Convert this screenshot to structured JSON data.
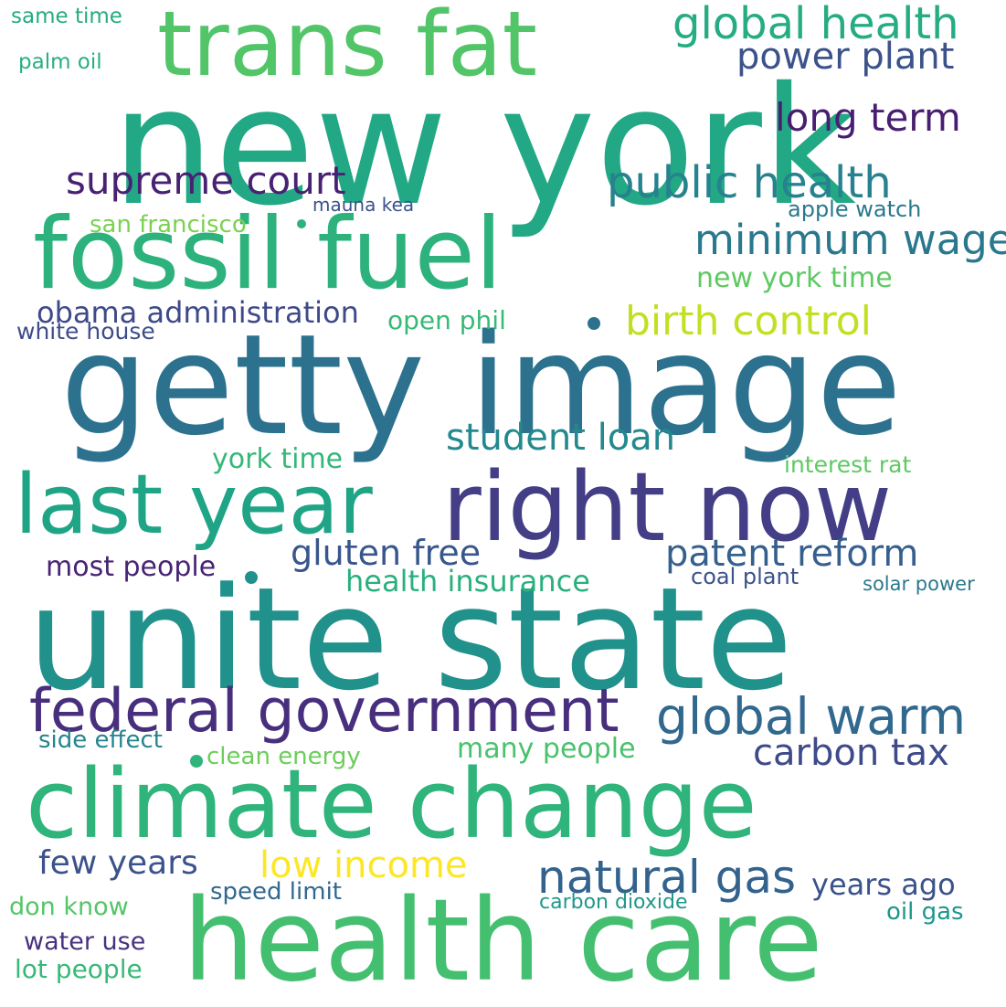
{
  "words": [
    {
      "text": "new york",
      "color": "#22a884"
    },
    {
      "text": "getty image",
      "color": "#2c728e"
    },
    {
      "text": "unite state",
      "color": "#21918c"
    },
    {
      "text": "climate change",
      "color": "#2fb47c"
    },
    {
      "text": "health care",
      "color": "#44bf70"
    },
    {
      "text": "fossil fuel",
      "color": "#2db27d"
    },
    {
      "text": "trans fat",
      "color": "#52c569"
    },
    {
      "text": "right now",
      "color": "#433e85"
    },
    {
      "text": "last year",
      "color": "#20a486"
    },
    {
      "text": "federal government",
      "color": "#472f7d"
    },
    {
      "text": "global health",
      "color": "#25ac82"
    },
    {
      "text": "power plant",
      "color": "#3b528b"
    },
    {
      "text": "long term",
      "color": "#481f70"
    },
    {
      "text": "supreme court",
      "color": "#482173"
    },
    {
      "text": "public health",
      "color": "#26828e"
    },
    {
      "text": "minimum wage",
      "color": "#2a788e"
    },
    {
      "text": "birth control",
      "color": "#c2df23"
    },
    {
      "text": "global warm",
      "color": "#31688e"
    },
    {
      "text": "natural gas",
      "color": "#33638d"
    },
    {
      "text": "student loan",
      "color": "#23898e"
    },
    {
      "text": "patent reform",
      "color": "#355f8d"
    },
    {
      "text": "carbon tax",
      "color": "#3e4a89"
    },
    {
      "text": "low income",
      "color": "#fde725"
    },
    {
      "text": "gluten free",
      "color": "#39568c"
    },
    {
      "text": "health insurance",
      "color": "#2ab07f"
    },
    {
      "text": "obama administration",
      "color": "#3e4989"
    },
    {
      "text": "new york time",
      "color": "#5ec962"
    },
    {
      "text": "few years",
      "color": "#3b528b"
    },
    {
      "text": "years ago",
      "color": "#3b528b"
    },
    {
      "text": "york time",
      "color": "#35b779"
    },
    {
      "text": "many people",
      "color": "#4ac16d"
    },
    {
      "text": "most people",
      "color": "#482475"
    },
    {
      "text": "open phil",
      "color": "#38b977"
    },
    {
      "text": "san francisco",
      "color": "#7ad151"
    },
    {
      "text": "white house",
      "color": "#3e4c8a"
    },
    {
      "text": "apple watch",
      "color": "#2a788e"
    },
    {
      "text": "interest rat",
      "color": "#5ec962"
    },
    {
      "text": "side effect",
      "color": "#25848e"
    },
    {
      "text": "clean energy",
      "color": "#6ccd5a"
    },
    {
      "text": "coal plant",
      "color": "#3b528b"
    },
    {
      "text": "solar power",
      "color": "#2a788e"
    },
    {
      "text": "speed limit",
      "color": "#31688e"
    },
    {
      "text": "carbon dioxide",
      "color": "#1f988b"
    },
    {
      "text": "don know",
      "color": "#54c568"
    },
    {
      "text": "oil gas",
      "color": "#1f968b"
    },
    {
      "text": "water use",
      "color": "#46327e"
    },
    {
      "text": "lot people",
      "color": "#38b977"
    },
    {
      "text": "same time",
      "color": "#25ab82"
    },
    {
      "text": "palm oil",
      "color": "#29af7f"
    },
    {
      "text": "mauna kea",
      "color": "#3b528b"
    }
  ]
}
